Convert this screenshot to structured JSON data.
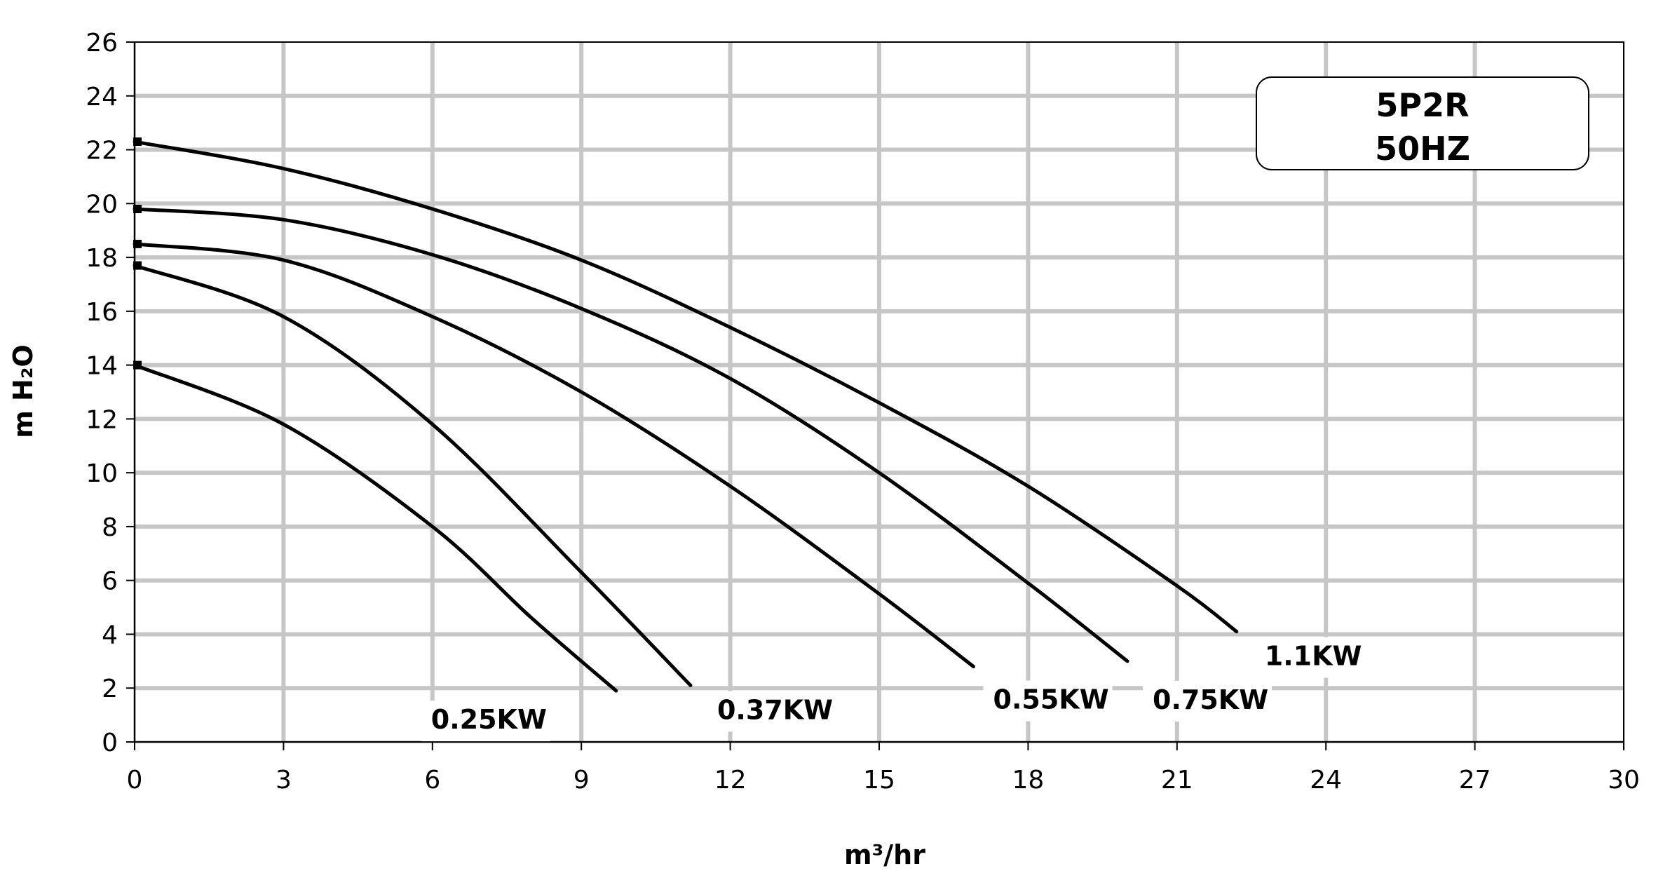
{
  "chart_data": {
    "type": "line",
    "title": "",
    "xlabel": "m³/hr",
    "ylabel": "m H₂O",
    "xlim": [
      0,
      30
    ],
    "ylim": [
      0,
      26
    ],
    "x_ticks": [
      "0",
      "3",
      "6",
      "9",
      "12",
      "15",
      "18",
      "21",
      "24",
      "27",
      "30"
    ],
    "y_ticks": [
      "0",
      "2",
      "4",
      "6",
      "8",
      "10",
      "12",
      "14",
      "16",
      "18",
      "20",
      "22",
      "24",
      "26"
    ],
    "grid": true,
    "legend": "none",
    "annotation_box": [
      "5P2R",
      "50HZ"
    ],
    "series": [
      {
        "name": "0.25KW",
        "x": [
          0,
          3,
          6,
          8,
          9.7
        ],
        "y": [
          14.0,
          11.8,
          8.0,
          4.6,
          1.9
        ]
      },
      {
        "name": "0.37KW",
        "x": [
          0,
          3,
          6,
          9,
          11.2
        ],
        "y": [
          17.7,
          15.8,
          11.8,
          6.3,
          2.1
        ]
      },
      {
        "name": "0.55KW",
        "x": [
          0,
          3,
          6,
          9,
          12,
          15,
          16.9
        ],
        "y": [
          18.5,
          17.9,
          15.8,
          13.0,
          9.5,
          5.5,
          2.8
        ]
      },
      {
        "name": "0.75KW",
        "x": [
          0,
          3,
          6,
          9,
          12,
          15,
          18,
          20.0
        ],
        "y": [
          19.8,
          19.4,
          18.1,
          16.1,
          13.5,
          10.0,
          5.9,
          3.0
        ]
      },
      {
        "name": "1.1KW",
        "x": [
          0,
          3,
          6,
          9,
          12,
          15,
          18,
          21,
          22.2
        ],
        "y": [
          22.3,
          21.3,
          19.8,
          17.9,
          15.4,
          12.6,
          9.5,
          5.8,
          4.1
        ]
      }
    ]
  }
}
